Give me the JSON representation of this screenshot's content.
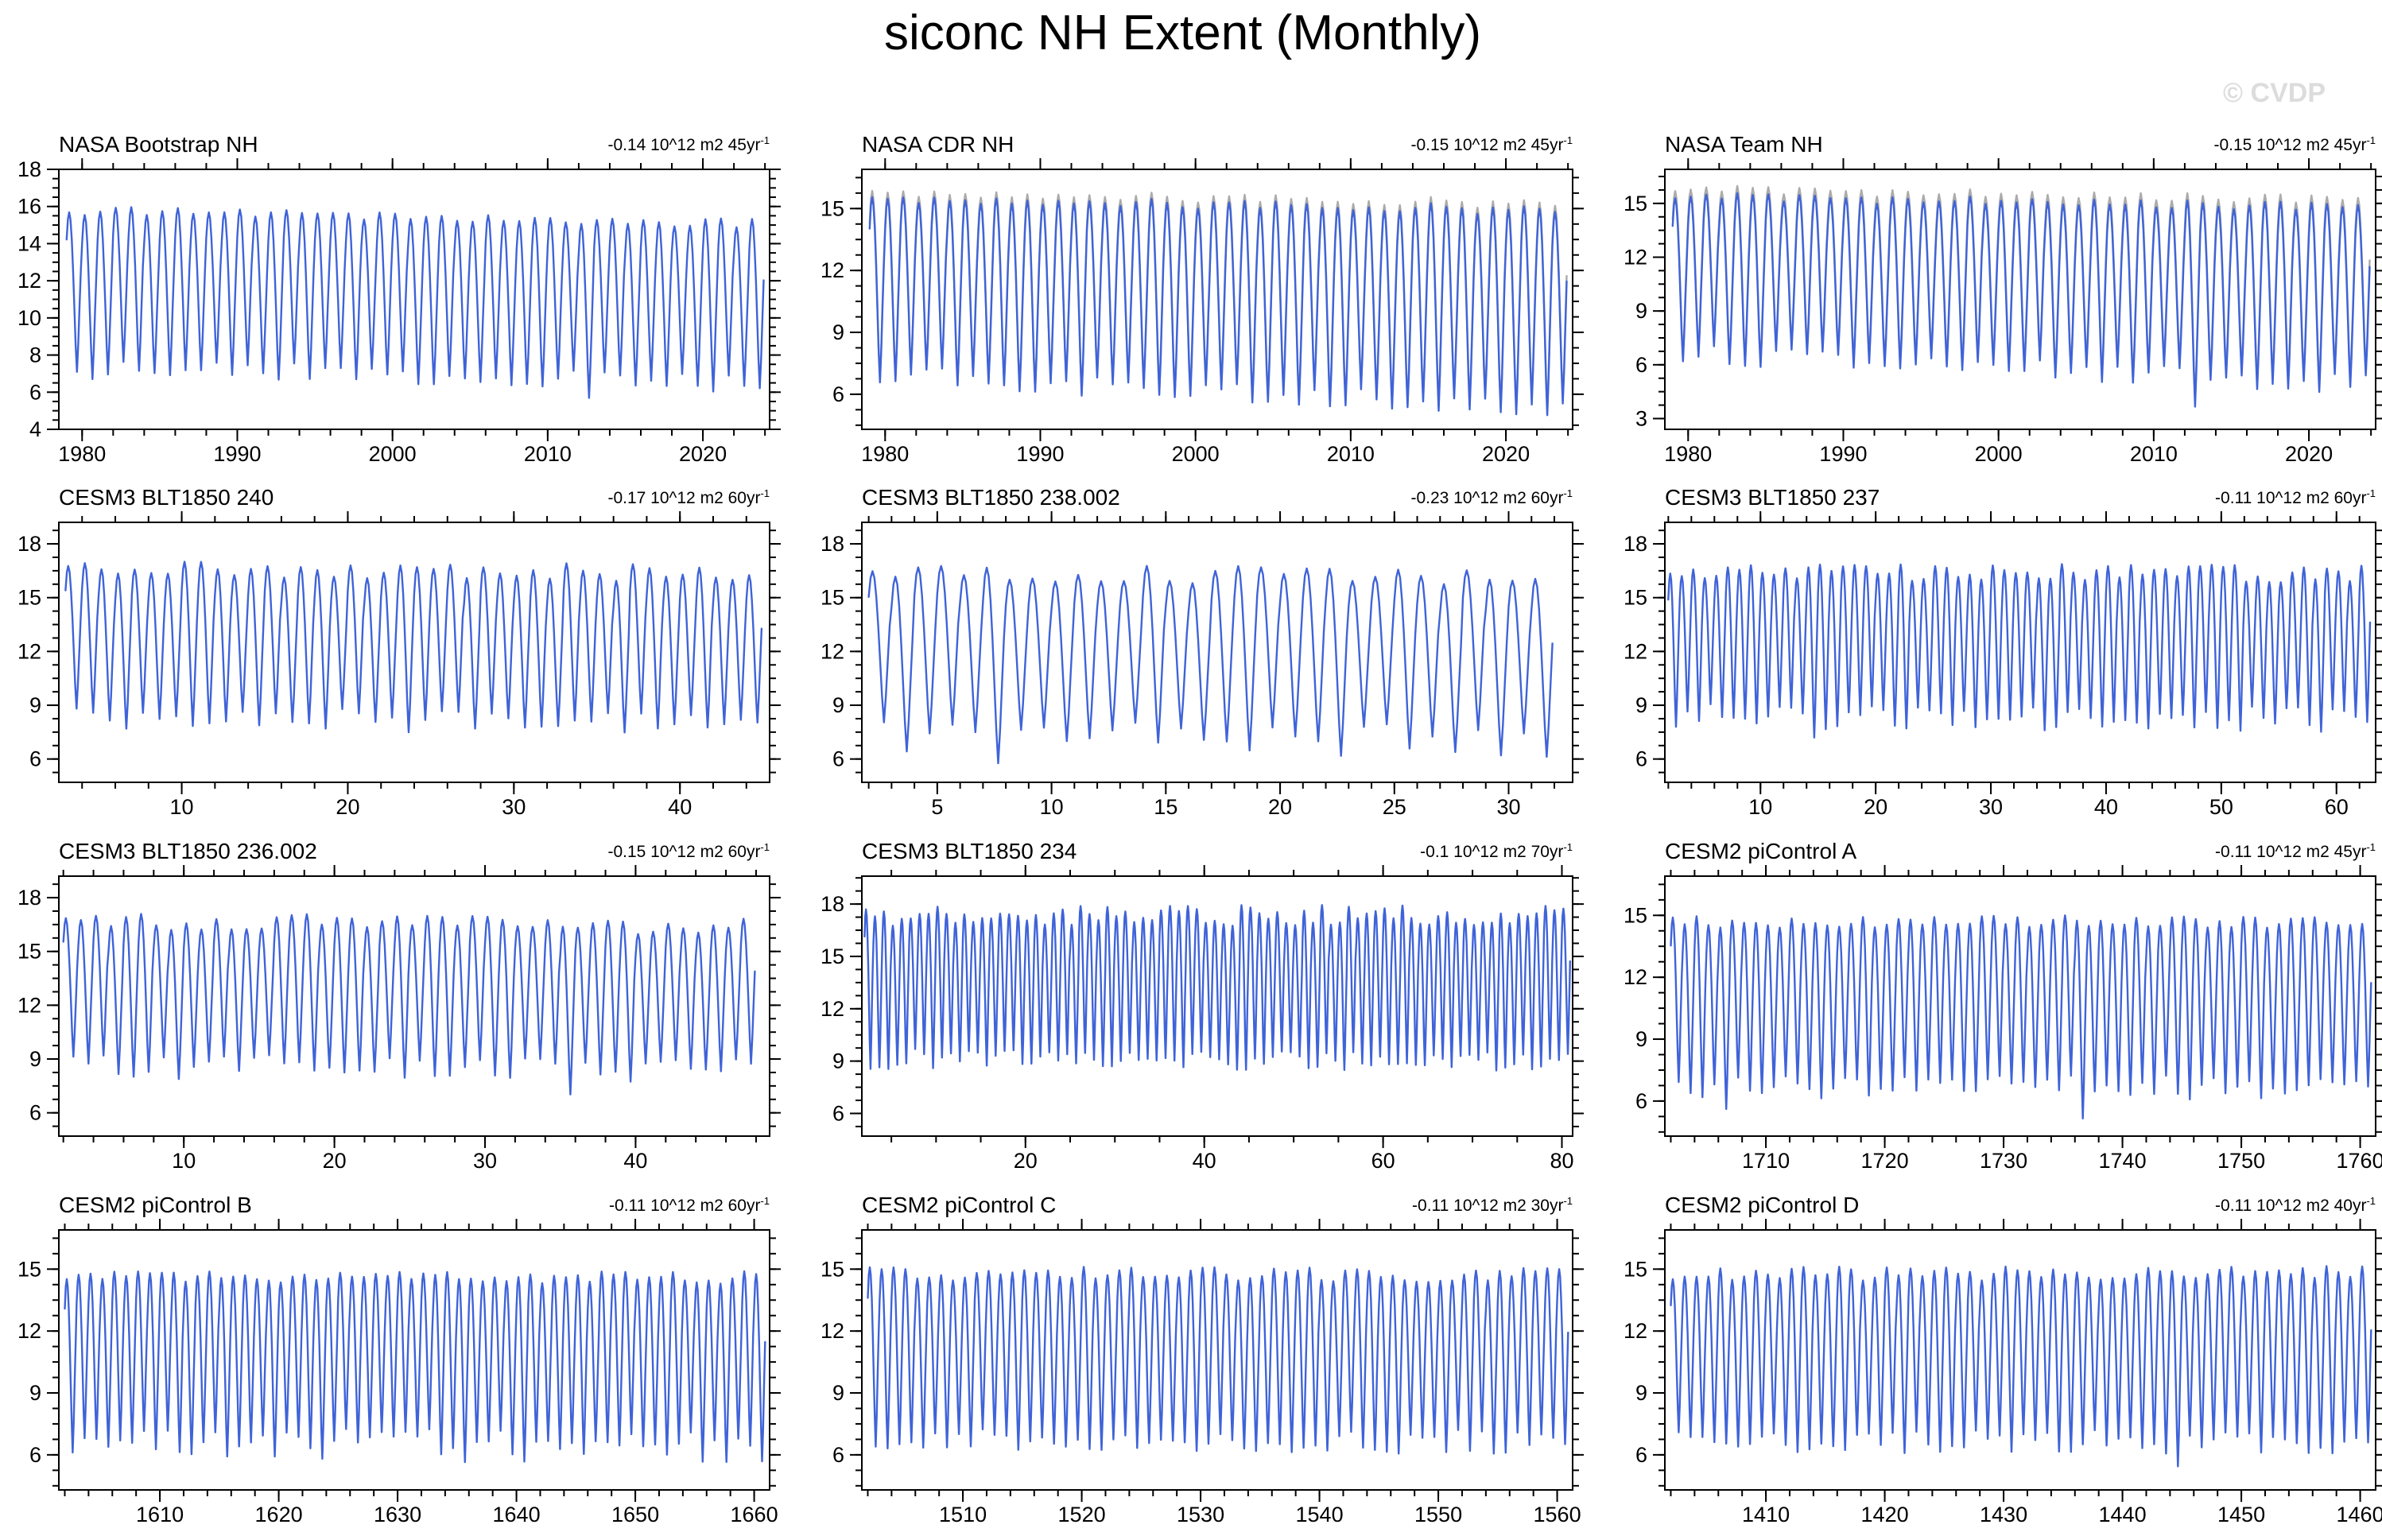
{
  "page": {
    "title": "siconc NH Extent (Monthly)",
    "watermark": "© CVDP"
  },
  "colors": {
    "line": "#3f63d8",
    "obs_overlay": "#ababab",
    "frame": "#000000",
    "watermark": "#dcdcdc"
  },
  "chart_data": [
    {
      "type": "line",
      "title": "NASA Bootstrap NH",
      "trend": {
        "text": "-0.14 10^12 m2 45yr",
        "sup": "-1"
      },
      "xlim": [
        1978.5,
        2024.3
      ],
      "ylim": [
        4,
        18
      ],
      "x_ticks": [
        1980,
        1990,
        2000,
        2010,
        2020
      ],
      "x_minor_step": 2,
      "y_ticks": [
        4,
        6,
        8,
        10,
        12,
        14,
        16,
        18
      ],
      "y_minor_step": 0.5,
      "grid": false,
      "legend": "none",
      "series": [
        {
          "name": "NASA Bootstrap NH",
          "color": "#3f63d8",
          "annual_cycle": {
            "start_year": 1979,
            "end_year": 2024,
            "winter_max_start": 15.8,
            "winter_max_end": 15.1,
            "summer_min_start": 7.4,
            "summer_min_end": 6.4,
            "max_jitter": 0.25,
            "min_jitter": 0.5,
            "peak_month": 2,
            "trough_month": 8,
            "seed": 11,
            "dips": [
              {
                "year": 1980,
                "delta": -0.8
              },
              {
                "year": 2012,
                "delta": -1.0
              }
            ]
          }
        }
      ]
    },
    {
      "type": "line",
      "title": "NASA CDR NH",
      "trend": {
        "text": "-0.15 10^12 m2 45yr",
        "sup": "-1"
      },
      "xlim": [
        1978.5,
        2024.3
      ],
      "ylim": [
        4.3,
        16.9
      ],
      "x_ticks": [
        1980,
        1990,
        2000,
        2010,
        2020
      ],
      "x_minor_step": 2,
      "y_ticks": [
        6,
        9,
        12,
        15
      ],
      "y_minor_step": 0.75,
      "grid": false,
      "legend": "none",
      "series": [
        {
          "name": "observations overlay",
          "color": "#ababab",
          "annual_cycle": {
            "start_year": 1979,
            "end_year": 2024,
            "winter_max_start": 15.8,
            "winter_max_end": 15.2,
            "summer_min_start": 7.0,
            "summer_min_end": 5.5,
            "max_jitter": 0.25,
            "min_jitter": 0.5,
            "peak_month": 2,
            "trough_month": 8,
            "seed": 22,
            "dips": [
              {
                "year": 2012,
                "delta": -0.8
              }
            ]
          }
        },
        {
          "name": "NASA CDR NH",
          "color": "#3f63d8",
          "annual_cycle": {
            "start_year": 1979,
            "end_year": 2024,
            "winter_max_start": 15.5,
            "winter_max_end": 14.9,
            "summer_min_start": 6.9,
            "summer_min_end": 5.3,
            "max_jitter": 0.25,
            "min_jitter": 0.5,
            "peak_month": 2,
            "trough_month": 8,
            "seed": 22,
            "dips": [
              {
                "year": 2012,
                "delta": -0.8
              }
            ]
          }
        }
      ]
    },
    {
      "type": "line",
      "title": "NASA Team NH",
      "trend": {
        "text": "-0.15 10^12 m2 45yr",
        "sup": "-1"
      },
      "xlim": [
        1978.5,
        2024.3
      ],
      "ylim": [
        2.4,
        16.9
      ],
      "x_ticks": [
        1980,
        1990,
        2000,
        2010,
        2020
      ],
      "x_minor_step": 2,
      "y_ticks": [
        3,
        6,
        9,
        12,
        15
      ],
      "y_minor_step": 0.75,
      "grid": false,
      "legend": "none",
      "series": [
        {
          "name": "observations overlay",
          "color": "#ababab",
          "annual_cycle": {
            "start_year": 1979,
            "end_year": 2024,
            "winter_max_start": 15.8,
            "winter_max_end": 15.2,
            "summer_min_start": 6.8,
            "summer_min_end": 5.2,
            "max_jitter": 0.25,
            "min_jitter": 0.55,
            "peak_month": 2,
            "trough_month": 8,
            "seed": 33,
            "dips": [
              {
                "year": 2012,
                "delta": -1.2
              }
            ]
          }
        },
        {
          "name": "NASA Team NH",
          "color": "#3f63d8",
          "annual_cycle": {
            "start_year": 1979,
            "end_year": 2024,
            "winter_max_start": 15.4,
            "winter_max_end": 14.8,
            "summer_min_start": 6.6,
            "summer_min_end": 4.9,
            "max_jitter": 0.25,
            "min_jitter": 0.55,
            "peak_month": 2,
            "trough_month": 8,
            "seed": 33,
            "dips": [
              {
                "year": 2012,
                "delta": -1.2
              }
            ]
          }
        }
      ]
    },
    {
      "type": "line",
      "title": "CESM3 BLT1850 240",
      "trend": {
        "text": "-0.17 10^12 m2 60yr",
        "sup": "-1"
      },
      "xlim": [
        2.6,
        45.4
      ],
      "ylim": [
        4.7,
        19.2
      ],
      "x_ticks": [
        10,
        20,
        30,
        40
      ],
      "x_minor_step": 2,
      "y_ticks": [
        6,
        9,
        12,
        15,
        18
      ],
      "y_minor_step": 0.75,
      "grid": false,
      "legend": "none",
      "series": [
        {
          "name": "CESM3 BLT1850 240",
          "color": "#3f63d8",
          "annual_cycle": {
            "start_year": 3,
            "end_year": 45,
            "winter_max_start": 16.6,
            "winter_max_end": 16.4,
            "summer_min_start": 8.3,
            "summer_min_end": 8.0,
            "max_jitter": 0.5,
            "min_jitter": 0.6,
            "peak_month": 2,
            "trough_month": 8,
            "seed": 44,
            "dips": [
              {
                "year": 23,
                "delta": -0.7
              }
            ]
          }
        }
      ]
    },
    {
      "type": "line",
      "title": "CESM3 BLT1850 238.002",
      "trend": {
        "text": "-0.23 10^12 m2 60yr",
        "sup": "-1"
      },
      "xlim": [
        1.7,
        32.8
      ],
      "ylim": [
        4.7,
        19.2
      ],
      "x_ticks": [
        5,
        10,
        15,
        20,
        25,
        30
      ],
      "x_minor_step": 1,
      "y_ticks": [
        6,
        9,
        12,
        15,
        18
      ],
      "y_minor_step": 0.75,
      "grid": false,
      "legend": "none",
      "series": [
        {
          "name": "CESM3 BLT1850 238.002",
          "color": "#3f63d8",
          "annual_cycle": {
            "start_year": 2,
            "end_year": 32,
            "winter_max_start": 16.4,
            "winter_max_end": 16.2,
            "summer_min_start": 7.3,
            "summer_min_end": 7.0,
            "max_jitter": 0.5,
            "min_jitter": 0.9,
            "peak_month": 2,
            "trough_month": 8,
            "seed": 55,
            "dips": [
              {
                "year": 7,
                "delta": -0.8
              },
              {
                "year": 22,
                "delta": -0.9
              }
            ]
          }
        }
      ]
    },
    {
      "type": "line",
      "title": "CESM3 BLT1850 237",
      "trend": {
        "text": "-0.11 10^12 m2 60yr",
        "sup": "-1"
      },
      "xlim": [
        1.7,
        63.4
      ],
      "ylim": [
        4.7,
        19.2
      ],
      "x_ticks": [
        10,
        20,
        30,
        40,
        50,
        60
      ],
      "x_minor_step": 2,
      "y_ticks": [
        6,
        9,
        12,
        15,
        18
      ],
      "y_minor_step": 0.75,
      "grid": false,
      "legend": "none",
      "series": [
        {
          "name": "CESM3 BLT1850 237",
          "color": "#3f63d8",
          "annual_cycle": {
            "start_year": 2,
            "end_year": 63,
            "winter_max_start": 16.5,
            "winter_max_end": 16.3,
            "summer_min_start": 8.4,
            "summer_min_end": 8.2,
            "max_jitter": 0.5,
            "min_jitter": 0.7,
            "peak_month": 2,
            "trough_month": 8,
            "seed": 66,
            "dips": [
              {
                "year": 14,
                "delta": -0.8
              }
            ]
          }
        }
      ]
    },
    {
      "type": "line",
      "title": "CESM3 BLT1850 236.002",
      "trend": {
        "text": "-0.15 10^12 m2 60yr",
        "sup": "-1"
      },
      "xlim": [
        1.7,
        48.9
      ],
      "ylim": [
        4.7,
        19.2
      ],
      "x_ticks": [
        10,
        20,
        30,
        40
      ],
      "x_minor_step": 2,
      "y_ticks": [
        6,
        9,
        12,
        15,
        18
      ],
      "y_minor_step": 0.75,
      "grid": false,
      "legend": "none",
      "series": [
        {
          "name": "CESM3 BLT1850 236.002",
          "color": "#3f63d8",
          "annual_cycle": {
            "start_year": 2,
            "end_year": 48,
            "winter_max_start": 16.7,
            "winter_max_end": 16.4,
            "summer_min_start": 8.6,
            "summer_min_end": 8.4,
            "max_jitter": 0.5,
            "min_jitter": 0.7,
            "peak_month": 2,
            "trough_month": 8,
            "seed": 77,
            "dips": [
              {
                "year": 35,
                "delta": -1.0
              }
            ]
          }
        }
      ]
    },
    {
      "type": "line",
      "title": "CESM3 BLT1850 234",
      "trend": {
        "text": "-0.1 10^12 m2 70yr",
        "sup": "-1"
      },
      "xlim": [
        1.7,
        81.2
      ],
      "ylim": [
        4.7,
        19.6
      ],
      "x_ticks": [
        20,
        40,
        60,
        80
      ],
      "x_minor_step": 5,
      "y_ticks": [
        6,
        9,
        12,
        15,
        18
      ],
      "y_minor_step": 0.75,
      "grid": false,
      "legend": "none",
      "series": [
        {
          "name": "CESM3 BLT1850 234",
          "color": "#3f63d8",
          "annual_cycle": {
            "start_year": 2,
            "end_year": 81,
            "winter_max_start": 17.3,
            "winter_max_end": 17.4,
            "summer_min_start": 9.1,
            "summer_min_end": 9.0,
            "max_jitter": 0.6,
            "min_jitter": 0.6,
            "peak_month": 2,
            "trough_month": 8,
            "seed": 88,
            "dips": []
          }
        }
      ]
    },
    {
      "type": "line",
      "title": "CESM2 piControl A",
      "trend": {
        "text": "-0.11 10^12 m2 45yr",
        "sup": "-1"
      },
      "xlim": [
        1701.5,
        1761.3
      ],
      "ylim": [
        4.3,
        16.9
      ],
      "x_ticks": [
        1710,
        1720,
        1730,
        1740,
        1750,
        1760
      ],
      "x_minor_step": 2,
      "y_ticks": [
        6,
        9,
        12,
        15
      ],
      "y_minor_step": 0.75,
      "grid": false,
      "legend": "none",
      "series": [
        {
          "name": "CESM2 piControl A",
          "color": "#3f63d8",
          "annual_cycle": {
            "start_year": 1702,
            "end_year": 1761,
            "winter_max_start": 14.7,
            "winter_max_end": 14.7,
            "summer_min_start": 6.7,
            "summer_min_end": 6.6,
            "max_jitter": 0.3,
            "min_jitter": 0.6,
            "peak_month": 2,
            "trough_month": 8,
            "seed": 99,
            "dips": [
              {
                "year": 1706,
                "delta": -0.8
              },
              {
                "year": 1736,
                "delta": -0.9
              }
            ]
          }
        }
      ]
    },
    {
      "type": "line",
      "title": "CESM2 piControl B",
      "trend": {
        "text": "-0.11 10^12 m2 60yr",
        "sup": "-1"
      },
      "xlim": [
        1601.5,
        1661.3
      ],
      "ylim": [
        4.3,
        16.9
      ],
      "x_ticks": [
        1610,
        1620,
        1630,
        1640,
        1650,
        1660
      ],
      "x_minor_step": 2,
      "y_ticks": [
        6,
        9,
        12,
        15
      ],
      "y_minor_step": 0.75,
      "grid": false,
      "legend": "none",
      "series": [
        {
          "name": "CESM2 piControl B",
          "color": "#3f63d8",
          "annual_cycle": {
            "start_year": 1602,
            "end_year": 1661,
            "winter_max_start": 14.6,
            "winter_max_end": 14.6,
            "summer_min_start": 6.5,
            "summer_min_end": 6.4,
            "max_jitter": 0.3,
            "min_jitter": 0.8,
            "peak_month": 2,
            "trough_month": 8,
            "seed": 110,
            "dips": [
              {
                "year": 1612,
                "delta": -0.8
              },
              {
                "year": 1633,
                "delta": -1.1
              },
              {
                "year": 1645,
                "delta": -0.7
              }
            ]
          }
        }
      ]
    },
    {
      "type": "line",
      "title": "CESM2 piControl C",
      "trend": {
        "text": "-0.11 10^12 m2 30yr",
        "sup": "-1"
      },
      "xlim": [
        1501.5,
        1561.3
      ],
      "ylim": [
        4.3,
        16.9
      ],
      "x_ticks": [
        1510,
        1520,
        1530,
        1540,
        1550,
        1560
      ],
      "x_minor_step": 2,
      "y_ticks": [
        6,
        9,
        12,
        15
      ],
      "y_minor_step": 0.75,
      "grid": false,
      "legend": "none",
      "series": [
        {
          "name": "CESM2 piControl C",
          "color": "#3f63d8",
          "annual_cycle": {
            "start_year": 1502,
            "end_year": 1561,
            "winter_max_start": 14.8,
            "winter_max_end": 14.7,
            "summer_min_start": 6.7,
            "summer_min_end": 6.6,
            "max_jitter": 0.35,
            "min_jitter": 0.6,
            "peak_month": 2,
            "trough_month": 8,
            "seed": 121,
            "dips": [
              {
                "year": 1539,
                "delta": -0.7
              }
            ]
          }
        }
      ]
    },
    {
      "type": "line",
      "title": "CESM2 piControl D",
      "trend": {
        "text": "-0.11 10^12 m2 40yr",
        "sup": "-1"
      },
      "xlim": [
        1401.5,
        1461.3
      ],
      "ylim": [
        4.3,
        16.9
      ],
      "x_ticks": [
        1410,
        1420,
        1430,
        1440,
        1450,
        1460
      ],
      "x_minor_step": 2,
      "y_ticks": [
        6,
        9,
        12,
        15
      ],
      "y_minor_step": 0.75,
      "grid": false,
      "legend": "none",
      "series": [
        {
          "name": "CESM2 piControl D",
          "color": "#3f63d8",
          "annual_cycle": {
            "start_year": 1402,
            "end_year": 1461,
            "winter_max_start": 14.8,
            "winter_max_end": 14.8,
            "summer_min_start": 6.7,
            "summer_min_end": 6.6,
            "max_jitter": 0.35,
            "min_jitter": 0.6,
            "peak_month": 2,
            "trough_month": 8,
            "seed": 132,
            "dips": [
              {
                "year": 1444,
                "delta": -0.7
              }
            ]
          }
        }
      ]
    }
  ]
}
